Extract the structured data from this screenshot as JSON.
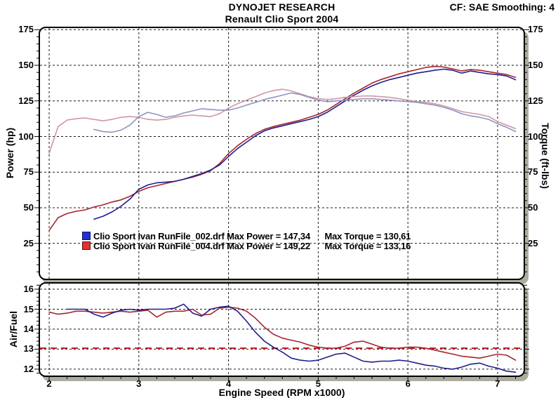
{
  "header": {
    "title": "DYNOJET RESEARCH",
    "subtitle": "Renault Clio Sport 2004",
    "cf_smoothing": "CF: SAE  Smoothing: 4"
  },
  "colors": {
    "power_blue": "#1e1e8f",
    "power_red": "#a6242c",
    "torque_blue": "#9093c4",
    "torque_red": "#d295a5",
    "afr_blue": "#1e1e8f",
    "afr_red": "#a6242c",
    "afr_target": "#c81e28",
    "grid": "#1a1a1a",
    "frame_shadow": "#adad9f"
  },
  "legend": {
    "runs": [
      {
        "swatch_color": "#2330cf",
        "label": "Clio Sport Ivan RunFile_002.drf Max Power = 147,34      Max Torque = 130,61"
      },
      {
        "swatch_color": "#e03030",
        "label": "Clio Sport Ivan RunFile_004.drf Max Power = 149,22      Max Torque = 133,16"
      }
    ]
  },
  "chart_data": [
    {
      "type": "line",
      "panel": "power-torque",
      "ylabel_left": "Power (hp)",
      "ylabel_right": "Torque (ft-lbs)",
      "xlim": [
        1.898,
        7.29
      ],
      "ylim": [
        0.2,
        176.13
      ],
      "yticks": [
        25,
        50,
        75,
        100,
        125,
        150,
        175
      ],
      "y_minor_step": 5,
      "xticks": [
        2,
        3,
        4,
        5,
        6,
        7
      ],
      "x_minor_step": 0.2,
      "grid": "dashed",
      "series": [
        {
          "name": "Power RunFile_004 (hp)",
          "color": "#a6242c",
          "x_start": 2.0,
          "x_step": 0.1,
          "values": [
            34,
            43,
            46,
            47.5,
            48.5,
            50.5,
            52,
            54,
            55.5,
            58,
            61.5,
            64,
            65.5,
            67,
            68.5,
            70,
            71.5,
            73.5,
            76,
            81,
            88,
            93.5,
            98,
            102,
            105,
            107,
            108.5,
            110,
            111.5,
            113.5,
            115.5,
            118.5,
            122.5,
            126.5,
            130.5,
            134,
            137.5,
            140,
            142,
            144,
            145.5,
            147,
            148.5,
            149.2,
            148.8,
            147.5,
            146,
            147,
            146.5,
            145.5,
            144.5,
            143.5,
            141.5
          ]
        },
        {
          "name": "Power RunFile_002 (hp)",
          "color": "#1e1e8f",
          "x_start": 2.5,
          "x_step": 0.1,
          "values": [
            42,
            44,
            47,
            51,
            56,
            63,
            66,
            67.5,
            68,
            68.5,
            70,
            72,
            74,
            76.5,
            80,
            86,
            91.5,
            96,
            100.5,
            104,
            106,
            107.5,
            109,
            110.5,
            112,
            114,
            117,
            121,
            125,
            129,
            132.5,
            135.5,
            138,
            140,
            141.5,
            143,
            144.5,
            145.5,
            146.5,
            147.3,
            146.5,
            144.5,
            146,
            145,
            144,
            143.5,
            142.5,
            139.8
          ]
        },
        {
          "name": "Torque RunFile_004 (ft-lbs)",
          "color": "#d295a5",
          "x_start": 2.0,
          "x_step": 0.1,
          "values": [
            88,
            107,
            111.5,
            112.5,
            113,
            112,
            111,
            112,
            113.5,
            114,
            113.5,
            112,
            111.5,
            112,
            113.5,
            114.5,
            115,
            114.5,
            114,
            116,
            120,
            123,
            125.5,
            128,
            130.5,
            132.2,
            133.2,
            132,
            130,
            128,
            126.5,
            126,
            126.5,
            127.5,
            128,
            128.5,
            128.5,
            128,
            127.5,
            126.5,
            125.5,
            124.5,
            124,
            123,
            121.5,
            119.5,
            117.5,
            116.5,
            115.5,
            114,
            110.5,
            108,
            105.5
          ]
        },
        {
          "name": "Torque RunFile_002 (ft-lbs)",
          "color": "#9093c4",
          "x_start": 2.5,
          "x_step": 0.1,
          "values": [
            105,
            103.5,
            103,
            104.5,
            108,
            114,
            117,
            115.5,
            113.5,
            114.5,
            116.5,
            118,
            119.5,
            119,
            118.5,
            118.5,
            120,
            122,
            124,
            126,
            127.5,
            129,
            130.6,
            129.5,
            127.5,
            125.5,
            124.5,
            125,
            125.5,
            126,
            126.5,
            126.5,
            126,
            125.5,
            125,
            124.5,
            124,
            123,
            122,
            120.5,
            118.5,
            116,
            114.5,
            113.5,
            112,
            109,
            106.5,
            103.5
          ]
        }
      ]
    },
    {
      "type": "line",
      "panel": "air-fuel",
      "ylabel_left": "Air/Fuel",
      "xlabel": "Engine Speed (RPM x1000)",
      "xlim": [
        1.898,
        7.29
      ],
      "ylim": [
        11.68,
        16.28
      ],
      "yticks": [
        12,
        13,
        14,
        15,
        16
      ],
      "y_minor_step": 0.2,
      "xticks": [
        2,
        3,
        4,
        5,
        6,
        7
      ],
      "x_minor_step": 0.2,
      "grid": "dashed",
      "show_x_labels": true,
      "target_line": {
        "value": 13.05,
        "color": "#c81e28",
        "style": "dashed"
      },
      "series": [
        {
          "name": "AFR RunFile_004",
          "color": "#a6242c",
          "x_start": 2.0,
          "x_step": 0.1,
          "values": [
            14.85,
            14.75,
            14.8,
            14.9,
            14.9,
            14.85,
            14.8,
            14.85,
            14.9,
            14.85,
            14.9,
            14.95,
            14.6,
            14.85,
            14.9,
            14.9,
            15.0,
            14.7,
            14.75,
            15.05,
            15.1,
            15.05,
            14.9,
            14.55,
            14.1,
            13.75,
            13.55,
            13.45,
            13.35,
            13.2,
            13.1,
            13.05,
            13.05,
            13.15,
            13.35,
            13.4,
            13.25,
            13.1,
            13.05,
            13.05,
            13.1,
            13.1,
            13.05,
            12.95,
            12.85,
            12.75,
            12.65,
            12.6,
            12.55,
            12.65,
            12.75,
            12.7,
            12.45
          ]
        },
        {
          "name": "AFR RunFile_002",
          "color": "#1e1e8f",
          "x_start": 2.2,
          "x_step": 0.1,
          "values": [
            15.0,
            15.0,
            15.0,
            14.75,
            14.6,
            14.8,
            14.95,
            15.0,
            14.95,
            15.0,
            15.0,
            15.0,
            15.05,
            15.25,
            14.8,
            14.65,
            15.0,
            15.1,
            15.15,
            14.9,
            14.4,
            13.85,
            13.4,
            13.1,
            12.85,
            12.55,
            12.45,
            12.4,
            12.45,
            12.6,
            12.75,
            12.8,
            12.6,
            12.4,
            12.35,
            12.4,
            12.4,
            12.45,
            12.4,
            12.3,
            12.2,
            12.15,
            12.05,
            12.0,
            12.1,
            12.25,
            12.3,
            12.15,
            12.05,
            11.9,
            11.85
          ]
        }
      ]
    }
  ]
}
